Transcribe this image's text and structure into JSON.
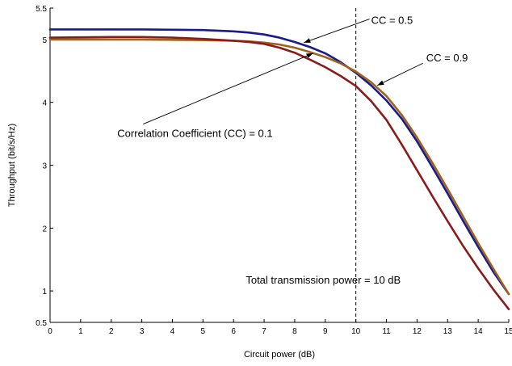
{
  "chart_data": {
    "type": "line",
    "xlabel": "Circuit power (dB)",
    "ylabel": "Throughput (bit/s/Hz)",
    "xlim": [
      0,
      15
    ],
    "ylim": [
      0.5,
      5.5
    ],
    "xticks": [
      0,
      1,
      2,
      3,
      4,
      5,
      6,
      7,
      8,
      9,
      10,
      11,
      12,
      13,
      14,
      15
    ],
    "yticks": [
      0.5,
      1,
      2,
      3,
      4,
      5,
      5.5
    ],
    "grid": false,
    "colors": {
      "cc_0_1": "#8B1A1A",
      "cc_0_5": "#1A1A8C",
      "cc_0_9": "#A0621A",
      "reference_line": "#000000"
    },
    "series": [
      {
        "name": "CC = 0.5",
        "color": "#1A1A8C",
        "x": [
          0,
          1,
          2,
          3,
          4,
          5,
          6,
          6.5,
          7,
          7.5,
          8,
          8.5,
          9,
          9.5,
          10,
          10.5,
          11,
          11.5,
          12,
          12.5,
          13,
          13.5,
          14,
          14.5,
          15
        ],
        "y": [
          5.16,
          5.16,
          5.16,
          5.16,
          5.155,
          5.15,
          5.13,
          5.11,
          5.08,
          5.03,
          4.96,
          4.88,
          4.78,
          4.64,
          4.47,
          4.27,
          4.03,
          3.74,
          3.38,
          2.97,
          2.55,
          2.12,
          1.7,
          1.3,
          0.95
        ]
      },
      {
        "name": "CC = 0.9",
        "color": "#A0621A",
        "x": [
          0,
          1,
          2,
          3,
          4,
          5,
          6,
          6.5,
          7,
          7.5,
          8,
          8.5,
          9,
          9.5,
          10,
          10.5,
          11,
          11.5,
          12,
          12.5,
          13,
          13.5,
          14,
          14.5,
          15
        ],
        "y": [
          5.0,
          5.0,
          5.0,
          5.0,
          4.995,
          4.99,
          4.98,
          4.97,
          4.95,
          4.92,
          4.87,
          4.8,
          4.72,
          4.62,
          4.49,
          4.32,
          4.1,
          3.8,
          3.44,
          3.04,
          2.62,
          2.19,
          1.76,
          1.35,
          0.95
        ]
      },
      {
        "name": "Correlation Coefficient (CC) = 0.1",
        "color": "#8B1A1A",
        "x": [
          0,
          1,
          2,
          3,
          4,
          5,
          6,
          6.5,
          7,
          7.5,
          8,
          8.5,
          9,
          9.5,
          10,
          10.5,
          11,
          11.5,
          12,
          12.5,
          13,
          13.5,
          14,
          14.5,
          15
        ],
        "y": [
          5.03,
          5.035,
          5.04,
          5.04,
          5.03,
          5.01,
          4.98,
          4.96,
          4.93,
          4.87,
          4.79,
          4.68,
          4.56,
          4.42,
          4.26,
          4.02,
          3.72,
          3.33,
          2.92,
          2.51,
          2.11,
          1.72,
          1.36,
          1.02,
          0.71
        ]
      }
    ],
    "reference_line": {
      "x": 10,
      "style": "dashed"
    },
    "annotations": [
      {
        "text": "CC = 0.5",
        "text_at": [
          10.5,
          5.3
        ],
        "arrow_to": [
          8.3,
          4.95
        ]
      },
      {
        "text": "CC = 0.9",
        "text_at": [
          12.3,
          4.7
        ],
        "arrow_to": [
          10.7,
          4.27
        ]
      },
      {
        "text": "Correlation Coefficient (CC) = 0.1",
        "text_at": [
          2.2,
          3.5
        ],
        "arrow_to": [
          8.6,
          4.78
        ]
      },
      {
        "text": "Total transmission power = 10 dB",
        "text_at": [
          6.4,
          1.17
        ],
        "arrow_to": null
      }
    ]
  }
}
